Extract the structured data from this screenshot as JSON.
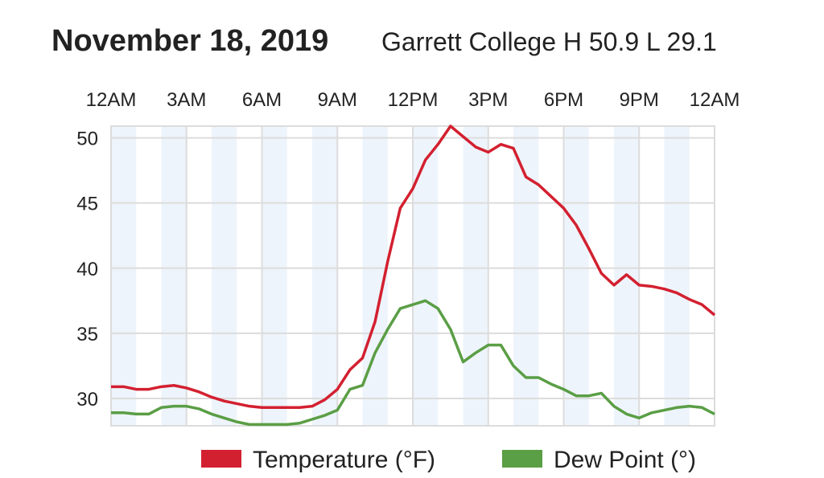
{
  "chart_data": {
    "type": "line",
    "title": "November 18, 2019",
    "subtitle": "Garrett College H 50.9 L 29.1",
    "x": [
      0,
      0.5,
      1,
      1.5,
      2,
      2.5,
      3,
      3.5,
      4,
      4.5,
      5,
      5.5,
      6,
      6.5,
      7,
      7.5,
      8,
      8.5,
      9,
      9.5,
      10,
      10.5,
      11,
      11.5,
      12,
      12.5,
      13,
      13.5,
      14,
      14.5,
      15,
      15.5,
      16,
      16.5,
      17,
      17.5,
      18,
      18.5,
      19,
      19.5,
      20,
      20.5,
      21,
      21.5,
      22,
      22.5,
      23,
      23.5,
      24
    ],
    "series": [
      {
        "name": "Temperature (°F)",
        "color": "#d32030",
        "values": [
          30.9,
          30.9,
          30.7,
          30.7,
          30.9,
          31.0,
          30.8,
          30.5,
          30.1,
          29.8,
          29.6,
          29.4,
          29.3,
          29.3,
          29.3,
          29.3,
          29.4,
          29.9,
          30.7,
          32.2,
          33.1,
          35.9,
          40.5,
          44.6,
          46.1,
          48.3,
          49.5,
          50.9,
          50.1,
          49.3,
          48.9,
          49.5,
          49.2,
          47.0,
          46.4,
          45.5,
          44.6,
          43.3,
          41.5,
          39.6,
          38.7,
          39.5,
          38.7,
          38.6,
          38.4,
          38.1,
          37.6,
          37.2,
          36.4
        ]
      },
      {
        "name": "Dew Point (°)",
        "color": "#5a9e45",
        "values": [
          28.9,
          28.9,
          28.8,
          28.8,
          29.3,
          29.4,
          29.4,
          29.2,
          28.8,
          28.5,
          28.2,
          28.0,
          28.0,
          28.0,
          28.0,
          28.1,
          28.4,
          28.7,
          29.1,
          30.7,
          31.0,
          33.5,
          35.3,
          36.9,
          37.2,
          37.5,
          36.9,
          35.3,
          32.8,
          33.5,
          34.1,
          34.1,
          32.5,
          31.6,
          31.6,
          31.1,
          30.7,
          30.2,
          30.2,
          30.4,
          29.4,
          28.8,
          28.5,
          28.9,
          29.1,
          29.3,
          29.4,
          29.3,
          28.8
        ]
      }
    ],
    "xlim": [
      0,
      24
    ],
    "xticks": [
      {
        "value": 0,
        "label": "12AM"
      },
      {
        "value": 3,
        "label": "3AM"
      },
      {
        "value": 6,
        "label": "6AM"
      },
      {
        "value": 9,
        "label": "9AM"
      },
      {
        "value": 12,
        "label": "12PM"
      },
      {
        "value": 15,
        "label": "3PM"
      },
      {
        "value": 18,
        "label": "6PM"
      },
      {
        "value": 21,
        "label": "9PM"
      },
      {
        "value": 24,
        "label": "12AM"
      }
    ],
    "ylim": [
      27.9,
      50.9
    ],
    "yticks": [
      30,
      35,
      40,
      45,
      50
    ],
    "grid": true
  }
}
